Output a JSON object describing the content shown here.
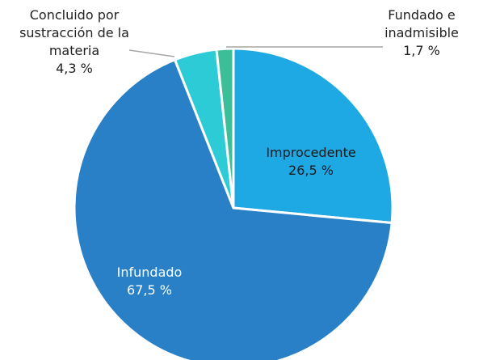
{
  "chart_data": {
    "type": "pie",
    "categories": [
      "Improcedente",
      "Infundado",
      "Concluido por sustracción de la materia",
      "Fundado e inadmisible"
    ],
    "values": [
      26.5,
      67.5,
      4.3,
      1.7
    ],
    "value_labels": [
      "26,5 %",
      "67,5 %",
      "4,3 %",
      "1,7 %"
    ],
    "colors": [
      "#1fa9e4",
      "#2a80c7",
      "#2ccbd6",
      "#3cbf98"
    ]
  }
}
